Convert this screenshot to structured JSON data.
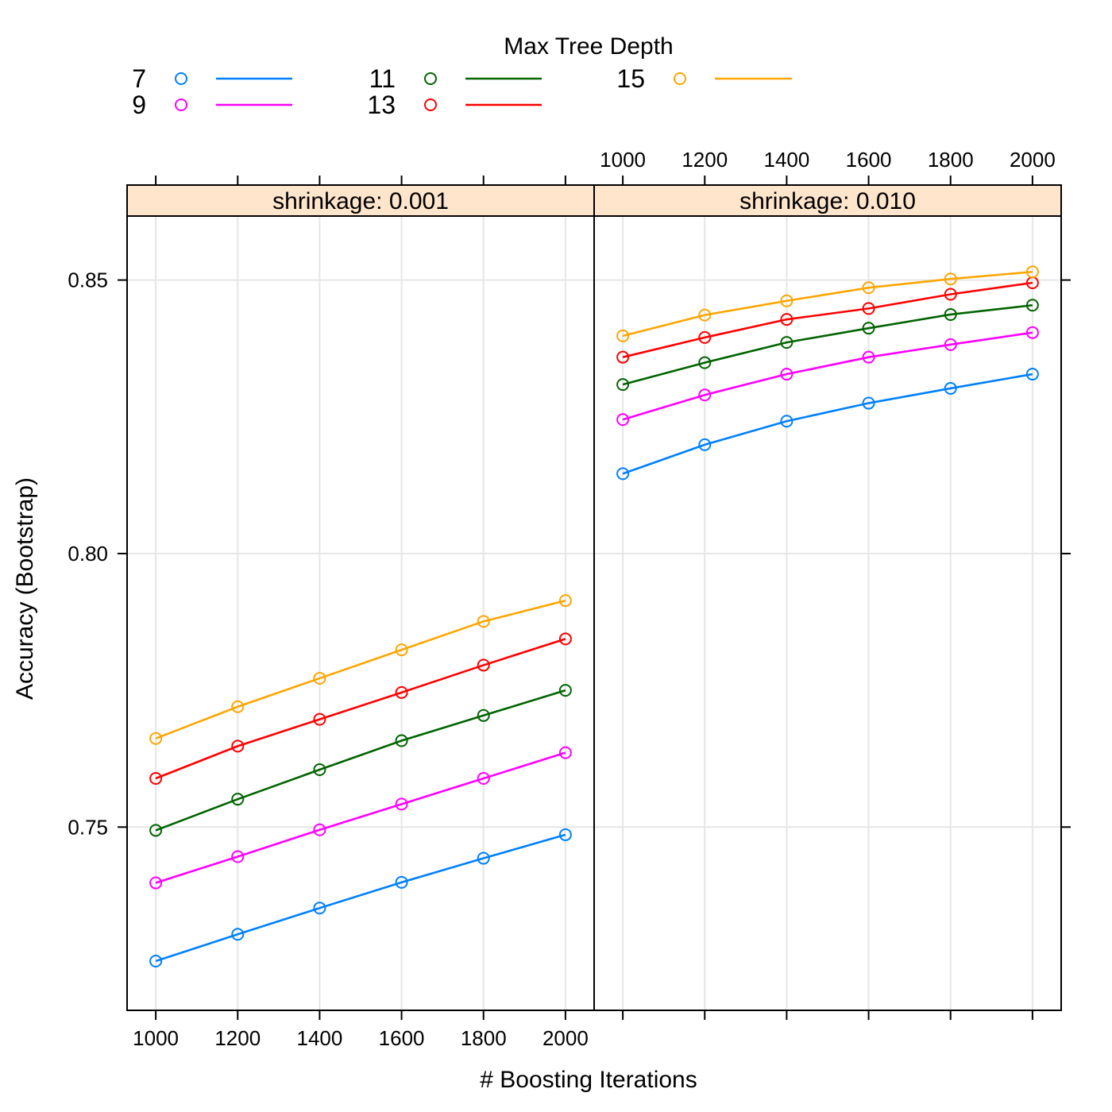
{
  "chart_data": {
    "type": "line",
    "title": "",
    "xlabel": "# Boosting Iterations",
    "ylabel": "Accuracy (Bootstrap)",
    "legend": {
      "title": "Max Tree Depth",
      "placement": "top",
      "entries": [
        "7",
        "9",
        "11",
        "13",
        "15"
      ]
    },
    "x_ticks": [
      "1000",
      "1200",
      "1400",
      "1600",
      "1800",
      "2000"
    ],
    "y_ticks": [
      "0.75",
      "0.80",
      "0.85"
    ],
    "xlim": [
      930,
      2070
    ],
    "ylim": [
      0.7165,
      0.8617
    ],
    "grid": true,
    "x": [
      1000,
      1200,
      1400,
      1600,
      1800,
      2000
    ],
    "panels": [
      {
        "strip": "shrinkage: 0.001",
        "series": [
          {
            "name": "7",
            "color": "#0080ff",
            "values": [
              0.7255,
              0.7304,
              0.7352,
              0.7399,
              0.7443,
              0.7486
            ]
          },
          {
            "name": "9",
            "color": "#ff00ff",
            "values": [
              0.7398,
              0.7446,
              0.7495,
              0.7542,
              0.7589,
              0.7636
            ]
          },
          {
            "name": "11",
            "color": "#006400",
            "values": [
              0.7494,
              0.7551,
              0.7605,
              0.7658,
              0.7704,
              0.775
            ]
          },
          {
            "name": "13",
            "color": "#ff0000",
            "values": [
              0.7589,
              0.7648,
              0.7697,
              0.7746,
              0.7796,
              0.7844
            ]
          },
          {
            "name": "15",
            "color": "#ffa500",
            "values": [
              0.7662,
              0.772,
              0.7772,
              0.7824,
              0.7876,
              0.7914
            ]
          }
        ]
      },
      {
        "strip": "shrinkage: 0.010",
        "series": [
          {
            "name": "7",
            "color": "#0080ff",
            "values": [
              0.8146,
              0.8199,
              0.8242,
              0.8275,
              0.8302,
              0.8328
            ]
          },
          {
            "name": "9",
            "color": "#ff00ff",
            "values": [
              0.8245,
              0.829,
              0.8328,
              0.8359,
              0.8382,
              0.8404
            ]
          },
          {
            "name": "11",
            "color": "#006400",
            "values": [
              0.8309,
              0.8349,
              0.8386,
              0.8412,
              0.8437,
              0.8454
            ]
          },
          {
            "name": "13",
            "color": "#ff0000",
            "values": [
              0.8359,
              0.8395,
              0.8428,
              0.8448,
              0.8474,
              0.8495
            ]
          },
          {
            "name": "15",
            "color": "#ffa500",
            "values": [
              0.8398,
              0.8436,
              0.8462,
              0.8486,
              0.8502,
              0.8515
            ]
          }
        ]
      }
    ]
  }
}
